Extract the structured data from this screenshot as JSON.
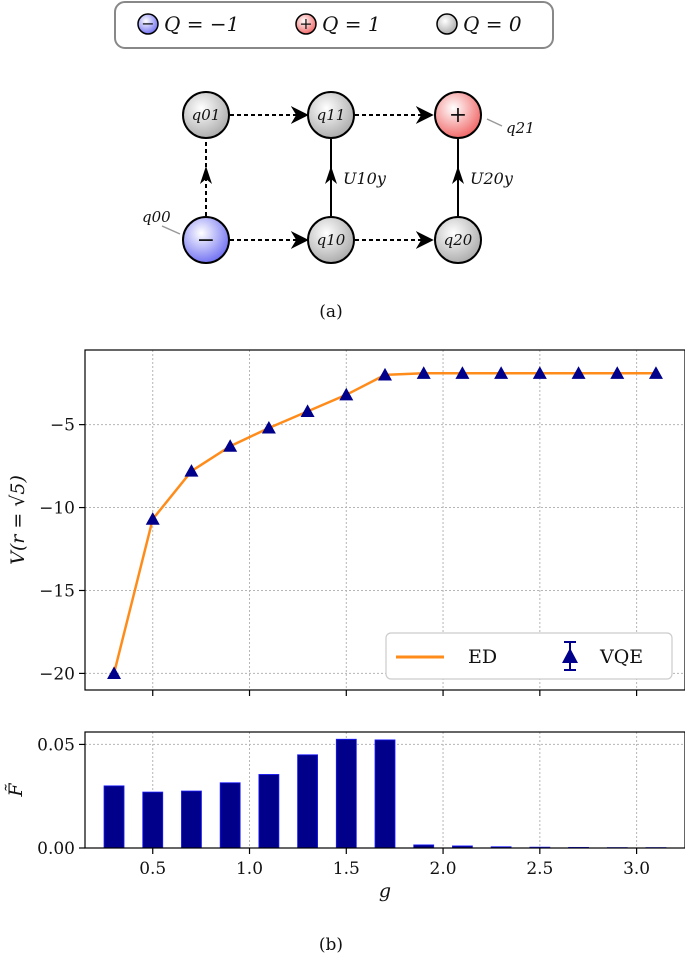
{
  "top_legend": {
    "items": [
      {
        "symbol": "−",
        "label": "Q = −1",
        "color": "#7b7bf0"
      },
      {
        "symbol": "+",
        "label": "Q = 1",
        "color": "#f07070"
      },
      {
        "symbol": "",
        "label": "Q = 0",
        "color": "#bdbdbd"
      }
    ]
  },
  "lattice": {
    "nodes": [
      {
        "id": "q01",
        "label": "q01",
        "kind": "neutral"
      },
      {
        "id": "q11",
        "label": "q11",
        "kind": "neutral"
      },
      {
        "id": "q21",
        "label": "+",
        "kind": "positive"
      },
      {
        "id": "q00",
        "label": "−",
        "kind": "negative"
      },
      {
        "id": "q10",
        "label": "q10",
        "kind": "neutral"
      },
      {
        "id": "q20",
        "label": "q20",
        "kind": "neutral"
      }
    ],
    "external_labels": {
      "q00": "q00",
      "q21": "q21"
    },
    "gate_labels": {
      "u10": "U10y",
      "u20": "U20y"
    }
  },
  "captions": {
    "a": "(a)",
    "b": "(b)"
  },
  "chart_data": [
    {
      "type": "line",
      "xlabel": "",
      "ylabel": "V(r = √5)",
      "xlim": [
        0.15,
        3.25
      ],
      "ylim": [
        -21,
        -0.5
      ],
      "xticks": [
        0.5,
        1.0,
        1.5,
        2.0,
        2.5,
        3.0
      ],
      "yticks": [
        -20,
        -15,
        -10,
        -5
      ],
      "ytick_labels": [
        "−20",
        "−15",
        "−10",
        "−5"
      ],
      "grid": true,
      "legend_position": "bottom-right",
      "series": [
        {
          "name": "ED",
          "style": "line",
          "color": "#ff8c1a",
          "x": [
            0.3,
            0.5,
            0.7,
            0.9,
            1.1,
            1.3,
            1.5,
            1.7,
            1.9,
            2.1,
            2.3,
            2.5,
            2.7,
            2.9,
            3.1
          ],
          "y": [
            -20.0,
            -10.7,
            -7.8,
            -6.3,
            -5.2,
            -4.2,
            -3.2,
            -2.0,
            -1.9,
            -1.9,
            -1.9,
            -1.9,
            -1.9,
            -1.9,
            -1.9
          ]
        },
        {
          "name": "VQE",
          "style": "marker-errorbar",
          "color": "#00008b",
          "x": [
            0.3,
            0.5,
            0.7,
            0.9,
            1.1,
            1.3,
            1.5,
            1.7,
            1.9,
            2.1,
            2.3,
            2.5,
            2.7,
            2.9,
            3.1
          ],
          "y": [
            -20.0,
            -10.7,
            -7.8,
            -6.3,
            -5.2,
            -4.2,
            -3.2,
            -2.0,
            -1.9,
            -1.9,
            -1.9,
            -1.9,
            -1.9,
            -1.9,
            -1.9
          ]
        }
      ]
    },
    {
      "type": "bar",
      "xlabel": "g",
      "ylabel": "F̃",
      "xlim": [
        0.15,
        3.25
      ],
      "ylim": [
        0,
        0.056
      ],
      "xticks": [
        0.5,
        1.0,
        1.5,
        2.0,
        2.5,
        3.0
      ],
      "xtick_labels": [
        "0.5",
        "1.0",
        "1.5",
        "2.0",
        "2.5",
        "3.0"
      ],
      "yticks": [
        0.0,
        0.05
      ],
      "ytick_labels": [
        "0.00",
        "0.05"
      ],
      "grid": true,
      "color": "#00008b",
      "x": [
        0.3,
        0.5,
        0.7,
        0.9,
        1.1,
        1.3,
        1.5,
        1.7,
        1.9,
        2.1,
        2.3,
        2.5,
        2.7,
        2.9,
        3.1
      ],
      "values": [
        0.03,
        0.027,
        0.0275,
        0.0315,
        0.0355,
        0.045,
        0.0525,
        0.0522,
        0.0015,
        0.001,
        0.0006,
        0.0004,
        0.0003,
        0.0002,
        0.0002
      ]
    }
  ]
}
